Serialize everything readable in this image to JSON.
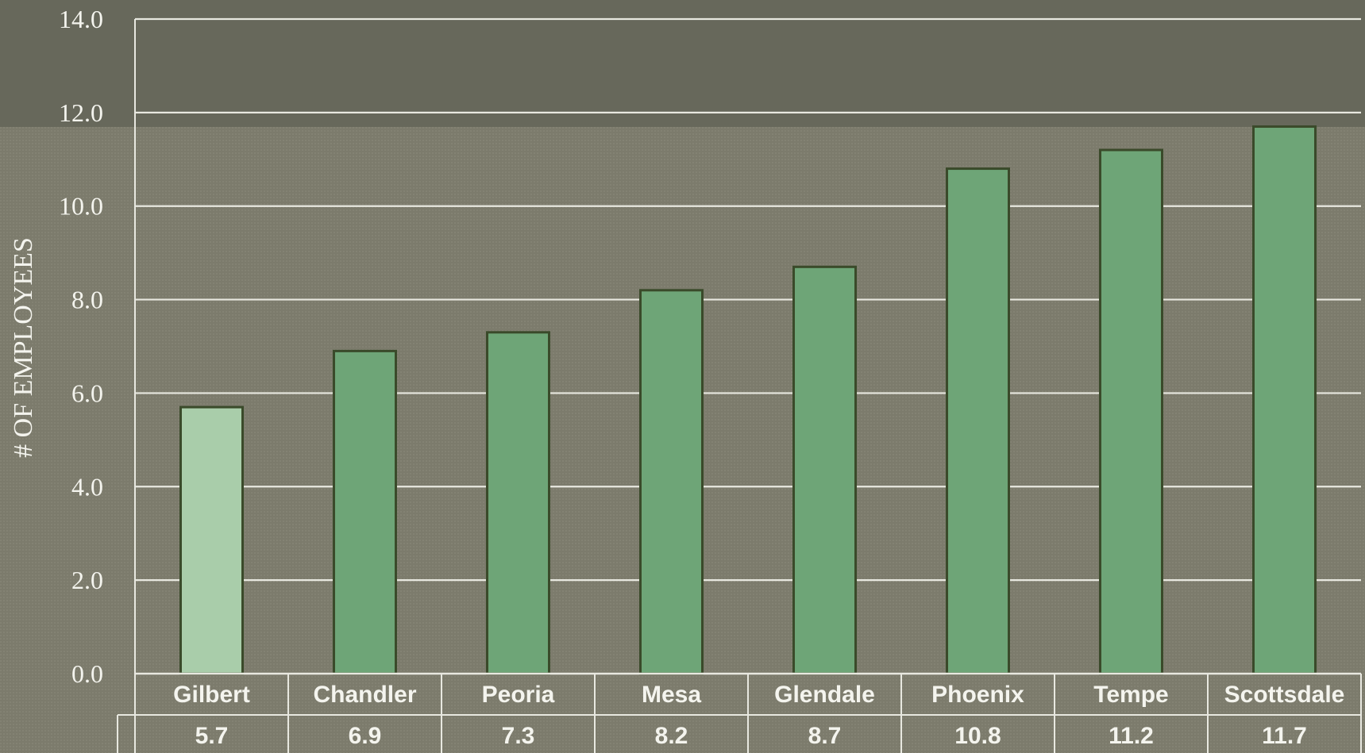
{
  "chart_data": {
    "type": "bar",
    "ylabel": "# OF EMPLOYEES",
    "ylim": [
      0,
      14
    ],
    "yticks": [
      0,
      2,
      4,
      6,
      8,
      10,
      12,
      14
    ],
    "ytick_labels": [
      "0.0",
      "2.0",
      "4.0",
      "6.0",
      "8.0",
      "10.0",
      "12.0",
      "14.0"
    ],
    "grid": true,
    "categories": [
      "Gilbert",
      "Chandler",
      "Peoria",
      "Mesa",
      "Glendale",
      "Phoenix",
      "Tempe",
      "Scottsdale"
    ],
    "values": [
      5.7,
      6.9,
      7.3,
      8.2,
      8.7,
      10.8,
      11.2,
      11.7
    ],
    "value_labels": [
      "5.7",
      "6.9",
      "7.3",
      "8.2",
      "8.7",
      "10.8",
      "11.2",
      "11.7"
    ],
    "highlight_category": "Gilbert",
    "colors": {
      "bar": "#6ea577",
      "bar_highlight": "#a9cdaa",
      "bar_stroke": "#3a4a2a",
      "gridline": "#e8e8e0",
      "background": "#7c7b6c",
      "top_band": "#67685b",
      "text": "#f4f4ee"
    }
  }
}
